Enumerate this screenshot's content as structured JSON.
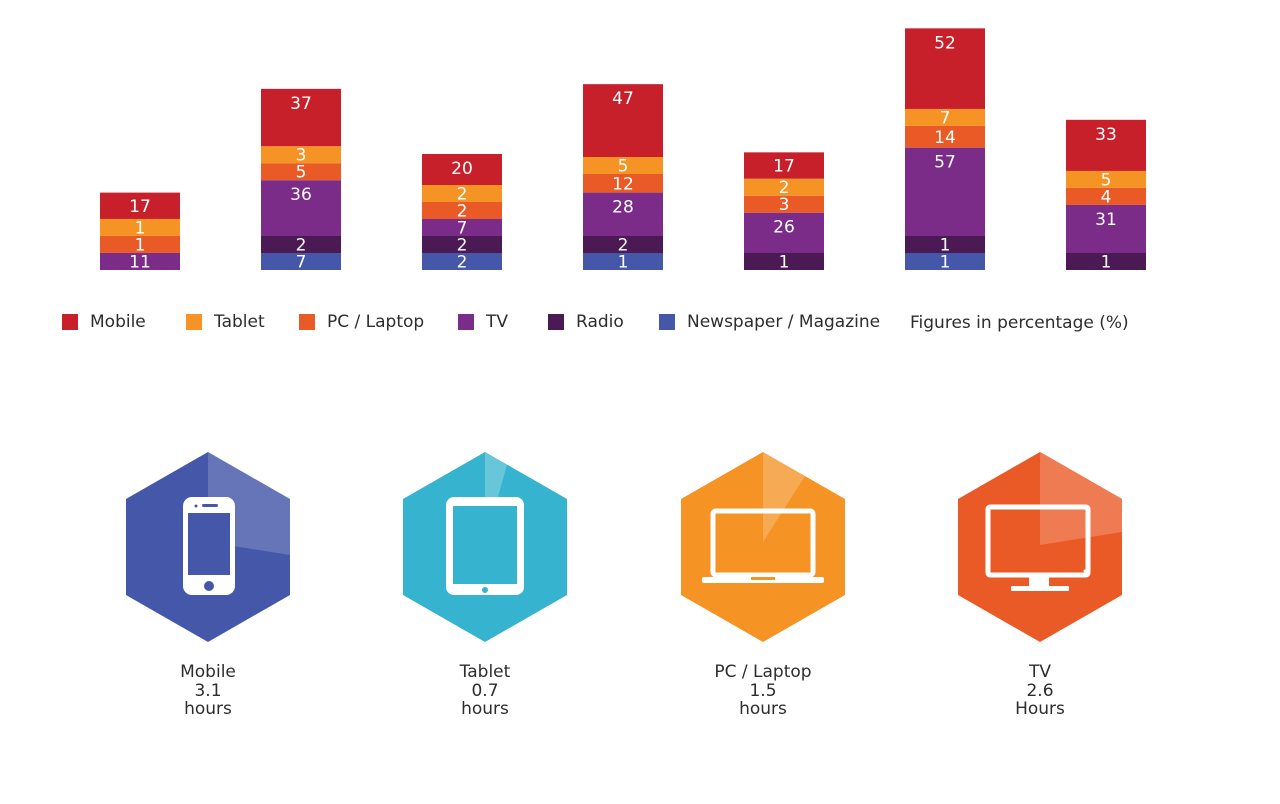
{
  "chart_data": {
    "type": "bar",
    "stacked": true,
    "title": "",
    "xlabel": "",
    "ylabel": "",
    "categories": [
      "",
      "",
      "",
      "",
      "",
      "",
      ""
    ],
    "series": [
      {
        "name": "Mobile",
        "color": "#c8202b",
        "values": [
          17,
          37,
          20,
          47,
          17,
          52,
          33
        ]
      },
      {
        "name": "Tablet",
        "color": "#f59324",
        "values": [
          1,
          3,
          2,
          5,
          2,
          7,
          5
        ]
      },
      {
        "name": "PC / Laptop",
        "color": "#ea5a26",
        "values": [
          1,
          5,
          2,
          12,
          3,
          14,
          4
        ]
      },
      {
        "name": "TV",
        "color": "#7b2b88",
        "values": [
          11,
          36,
          7,
          28,
          26,
          57,
          31
        ]
      },
      {
        "name": "Radio",
        "color": "#4b1a55",
        "values": [
          null,
          2,
          2,
          2,
          1,
          1,
          1
        ]
      },
      {
        "name": "Newspaper / Magazine",
        "color": "#4457a8",
        "values": [
          null,
          7,
          2,
          1,
          null,
          1,
          null
        ]
      }
    ],
    "note": "Figures in percentage (%)",
    "legend_position": "bottom",
    "grid": false
  },
  "devices": [
    {
      "name": "Mobile",
      "value": "3.1",
      "unit": "hours",
      "color": "#4457a8",
      "icon": "smartphone-icon"
    },
    {
      "name": "Tablet",
      "value": "0.7",
      "unit": "hours",
      "color": "#36b3ce",
      "icon": "tablet-icon"
    },
    {
      "name": "PC / Laptop",
      "value": "1.5",
      "unit": "hours",
      "color": "#f59324",
      "icon": "laptop-icon"
    },
    {
      "name": "TV",
      "value": "2.6",
      "unit": "Hours",
      "color": "#ea5a26",
      "icon": "monitor-icon"
    }
  ]
}
